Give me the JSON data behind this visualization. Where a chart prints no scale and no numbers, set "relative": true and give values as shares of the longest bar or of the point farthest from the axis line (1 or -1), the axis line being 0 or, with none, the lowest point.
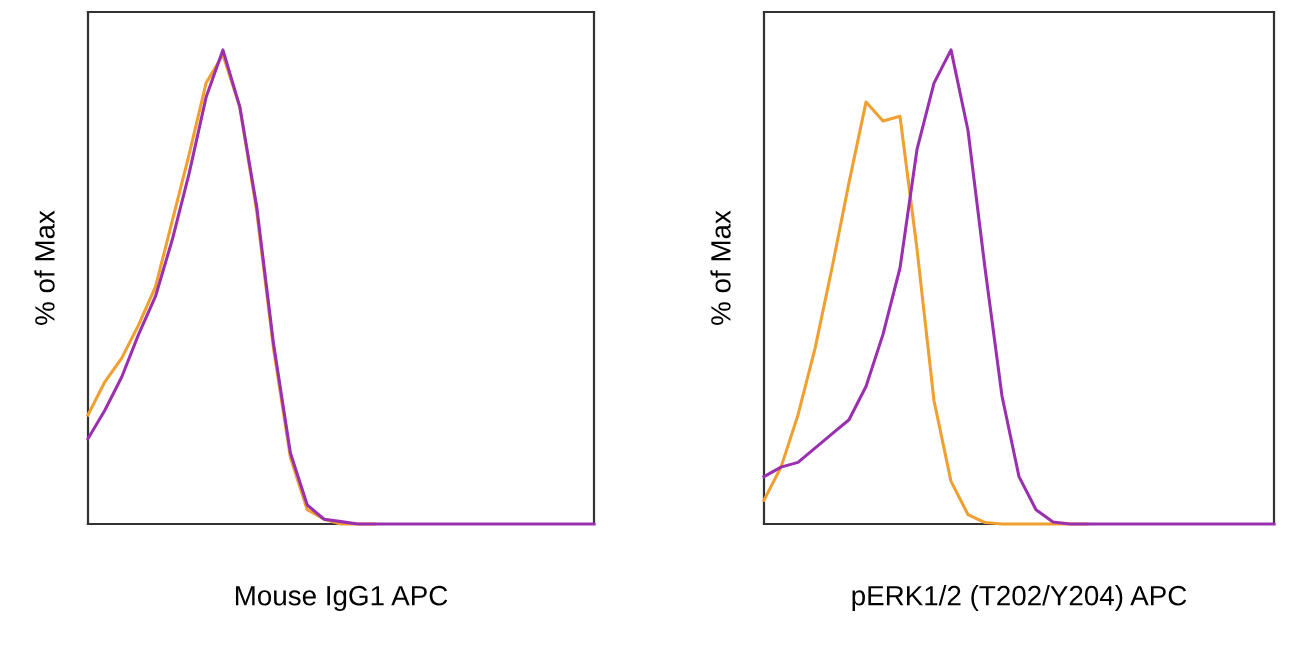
{
  "chart_data": [
    {
      "type": "line",
      "relative": true,
      "xlabel": "Mouse IgG1 APC",
      "ylabel": "% of Max",
      "tick_labels": false,
      "grid": false,
      "legend": false,
      "marker": "none",
      "line_style": "solid",
      "categories": [
        null,
        null,
        null,
        null,
        null,
        null,
        null,
        null,
        null,
        null,
        null,
        null,
        null,
        null,
        null,
        null,
        null,
        null,
        null,
        null,
        null,
        null,
        null,
        null,
        null,
        null,
        null,
        null,
        null,
        null,
        null
      ],
      "series": [
        {
          "color": "#f0a030",
          "values": [
            0.23,
            0.3,
            0.35,
            0.42,
            0.5,
            0.64,
            0.78,
            0.93,
            0.99,
            0.88,
            0.66,
            0.37,
            0.14,
            0.03,
            0.01,
            0,
            0,
            0,
            null,
            null,
            null,
            null,
            null,
            null,
            null,
            null,
            null,
            null,
            null,
            null,
            null
          ]
        },
        {
          "color": "#9a30b0",
          "values": [
            0.18,
            0.24,
            0.31,
            0.4,
            0.48,
            0.6,
            0.74,
            0.9,
            1.0,
            0.88,
            0.67,
            0.38,
            0.15,
            0.04,
            0.01,
            0.005,
            0,
            0,
            0,
            0,
            0,
            0,
            0,
            0,
            0,
            0,
            0,
            0,
            0,
            0,
            0
          ]
        }
      ]
    },
    {
      "type": "line",
      "relative": true,
      "xlabel": "pERK1/2 (T202/Y204) APC",
      "ylabel": "% of Max",
      "tick_labels": false,
      "grid": false,
      "legend": false,
      "marker": "none",
      "line_style": "solid",
      "categories": [
        null,
        null,
        null,
        null,
        null,
        null,
        null,
        null,
        null,
        null,
        null,
        null,
        null,
        null,
        null,
        null,
        null,
        null,
        null,
        null,
        null,
        null,
        null,
        null,
        null,
        null,
        null,
        null,
        null,
        null,
        null
      ],
      "series": [
        {
          "color": "#f0a030",
          "values": [
            0.05,
            0.12,
            0.23,
            0.37,
            0.54,
            0.72,
            0.89,
            0.85,
            0.86,
            0.58,
            0.26,
            0.09,
            0.02,
            0.003,
            0,
            0,
            0,
            0,
            0,
            0,
            null,
            null,
            null,
            null,
            null,
            null,
            null,
            null,
            null,
            null,
            null
          ]
        },
        {
          "color": "#9a30b0",
          "values": [
            0.1,
            0.12,
            0.13,
            0.16,
            0.19,
            0.22,
            0.29,
            0.4,
            0.54,
            0.79,
            0.93,
            1.0,
            0.83,
            0.54,
            0.27,
            0.1,
            0.03,
            0.004,
            0,
            0,
            0,
            0,
            0,
            0,
            0,
            0,
            0,
            0,
            0,
            0,
            0
          ]
        }
      ]
    }
  ]
}
